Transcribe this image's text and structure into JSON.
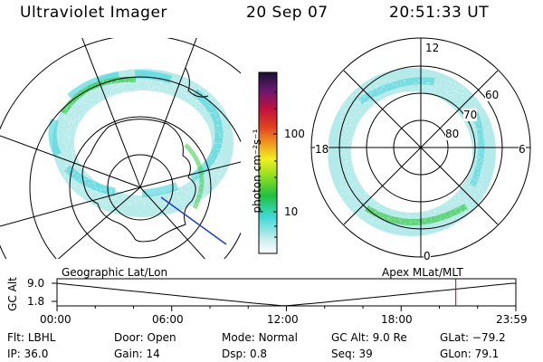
{
  "header": {
    "instrument": "Ultraviolet Imager",
    "date": "20 Sep 07",
    "time": "20:51:33 UT"
  },
  "colorbar": {
    "label": "photon cm⁻²s⁻¹",
    "ticks": [
      "100",
      "10"
    ]
  },
  "right_polar": {
    "lat_labels": [
      "60",
      "70",
      "80"
    ],
    "mlt_labels": {
      "top": "12",
      "left": "18",
      "right": "6",
      "bottom": "0"
    }
  },
  "timeline": {
    "ylabel": "GC Alt",
    "y_ticks": [
      "9.0",
      "1.8"
    ],
    "left_caption": "Geographic Lat/Lon",
    "right_caption": "Apex  MLat/MLT",
    "x_ticks": [
      "00:00",
      "06:00",
      "12:00",
      "18:00",
      "23:59"
    ],
    "marker_hour": 20.86,
    "marker_color": "#c00000"
  },
  "info_rows": [
    [
      {
        "key": "Flt:",
        "value": "LBHL"
      },
      {
        "key": "Door:",
        "value": "Open"
      },
      {
        "key": "Mode:",
        "value": "Normal"
      },
      {
        "key": "GC Alt:",
        "value": "9.0 Re"
      },
      {
        "key": "GLat:",
        "value": "−79.2"
      }
    ],
    [
      {
        "key": "IP:",
        "value": "36.0"
      },
      {
        "key": "Gain:",
        "value": "14"
      },
      {
        "key": "Dsp:",
        "value": "0.8"
      },
      {
        "key": "Seq:",
        "value": "39"
      },
      {
        "key": "GLon:",
        "value": "79.1"
      }
    ]
  ],
  "colors": {
    "aurora_low": "#a8e6e6",
    "aurora_mid": "#40d0d8",
    "aurora_high": "#3cc84a"
  }
}
